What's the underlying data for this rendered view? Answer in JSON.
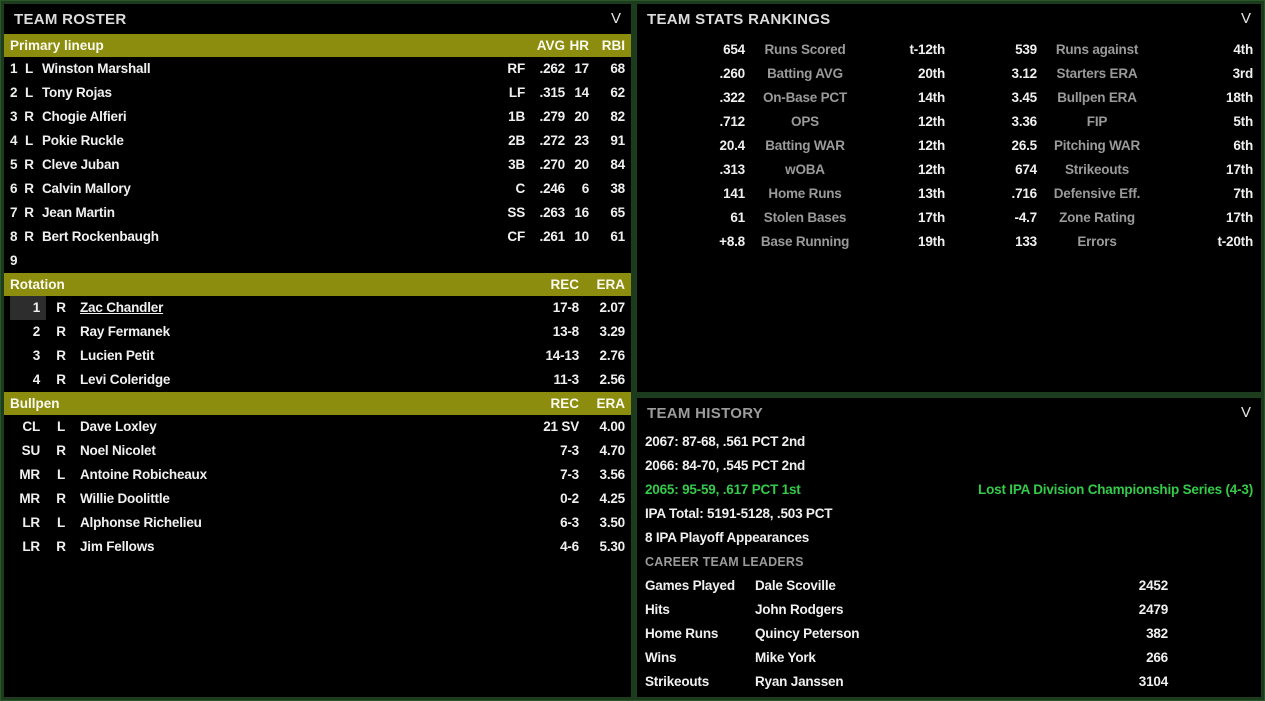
{
  "colors": {
    "accent_olive": "#8c8d0e",
    "accent_green": "#35cb4a",
    "frame_green": "#1d3c1d",
    "panel_bg": "#000000",
    "highlight_cell": "#2d2d2d"
  },
  "icons": {
    "collapse_chevron": "V"
  },
  "roster": {
    "title": "TEAM ROSTER",
    "lineup": {
      "label": "Primary lineup",
      "col_avg": "AVG",
      "col_hr": "HR",
      "col_rbi": "RBI",
      "rows": [
        {
          "num": "1",
          "hand": "L",
          "name": "Winston Marshall",
          "pos": "RF",
          "avg": ".262",
          "hr": "17",
          "rbi": "68"
        },
        {
          "num": "2",
          "hand": "L",
          "name": "Tony Rojas",
          "pos": "LF",
          "avg": ".315",
          "hr": "14",
          "rbi": "62"
        },
        {
          "num": "3",
          "hand": "R",
          "name": "Chogie Alfieri",
          "pos": "1B",
          "avg": ".279",
          "hr": "20",
          "rbi": "82"
        },
        {
          "num": "4",
          "hand": "L",
          "name": "Pokie Ruckle",
          "pos": "2B",
          "avg": ".272",
          "hr": "23",
          "rbi": "91"
        },
        {
          "num": "5",
          "hand": "R",
          "name": "Cleve Juban",
          "pos": "3B",
          "avg": ".270",
          "hr": "20",
          "rbi": "84"
        },
        {
          "num": "6",
          "hand": "R",
          "name": "Calvin Mallory",
          "pos": "C",
          "avg": ".246",
          "hr": "6",
          "rbi": "38"
        },
        {
          "num": "7",
          "hand": "R",
          "name": "Jean Martin",
          "pos": "SS",
          "avg": ".263",
          "hr": "16",
          "rbi": "65"
        },
        {
          "num": "8",
          "hand": "R",
          "name": "Bert Rockenbaugh",
          "pos": "CF",
          "avg": ".261",
          "hr": "10",
          "rbi": "61"
        },
        {
          "num": "9"
        }
      ]
    },
    "rotation": {
      "label": "Rotation",
      "col_rec": "REC",
      "col_era": "ERA",
      "rows": [
        {
          "num": "1",
          "hand": "R",
          "name": "Zac Chandler",
          "rec": "17-8",
          "era": "2.07"
        },
        {
          "num": "2",
          "hand": "R",
          "name": "Ray Fermanek",
          "rec": "13-8",
          "era": "3.29"
        },
        {
          "num": "3",
          "hand": "R",
          "name": "Lucien Petit",
          "rec": "14-13",
          "era": "2.76"
        },
        {
          "num": "4",
          "hand": "R",
          "name": "Levi Coleridge",
          "rec": "11-3",
          "era": "2.56"
        }
      ]
    },
    "bullpen": {
      "label": "Bullpen",
      "col_rec": "REC",
      "col_era": "ERA",
      "rows": [
        {
          "role": "CL",
          "hand": "L",
          "name": "Dave Loxley",
          "rec": "21 SV",
          "era": "4.00"
        },
        {
          "role": "SU",
          "hand": "R",
          "name": "Noel Nicolet",
          "rec": "7-3",
          "era": "4.70"
        },
        {
          "role": "MR",
          "hand": "L",
          "name": "Antoine Robicheaux",
          "rec": "7-3",
          "era": "3.56"
        },
        {
          "role": "MR",
          "hand": "R",
          "name": "Willie Doolittle",
          "rec": "0-2",
          "era": "4.25"
        },
        {
          "role": "LR",
          "hand": "L",
          "name": "Alphonse Richelieu",
          "rec": "6-3",
          "era": "3.50"
        },
        {
          "role": "LR",
          "hand": "R",
          "name": "Jim Fellows",
          "rec": "4-6",
          "era": "5.30"
        }
      ]
    }
  },
  "stats": {
    "title": "TEAM STATS RANKINGS",
    "rows": [
      {
        "lv": "654",
        "ll": "Runs Scored",
        "lr": "t-12th",
        "rv": "539",
        "rl": "Runs against",
        "rr": "4th"
      },
      {
        "lv": ".260",
        "ll": "Batting AVG",
        "lr": "20th",
        "rv": "3.12",
        "rl": "Starters ERA",
        "rr": "3rd"
      },
      {
        "lv": ".322",
        "ll": "On-Base PCT",
        "lr": "14th",
        "rv": "3.45",
        "rl": "Bullpen ERA",
        "rr": "18th"
      },
      {
        "lv": ".712",
        "ll": "OPS",
        "lr": "12th",
        "rv": "3.36",
        "rl": "FIP",
        "rr": "5th"
      },
      {
        "lv": "20.4",
        "ll": "Batting WAR",
        "lr": "12th",
        "rv": "26.5",
        "rl": "Pitching WAR",
        "rr": "6th"
      },
      {
        "lv": ".313",
        "ll": "wOBA",
        "lr": "12th",
        "rv": "674",
        "rl": "Strikeouts",
        "rr": "17th"
      },
      {
        "lv": "141",
        "ll": "Home Runs",
        "lr": "13th",
        "rv": ".716",
        "rl": "Defensive Eff.",
        "rr": "7th"
      },
      {
        "lv": "61",
        "ll": "Stolen Bases",
        "lr": "17th",
        "rv": "-4.7",
        "rl": "Zone Rating",
        "rr": "17th"
      },
      {
        "lv": "+8.8",
        "ll": "Base Running",
        "lr": "19th",
        "rv": "133",
        "rl": "Errors",
        "rr": "t-20th"
      }
    ]
  },
  "history": {
    "title": "TEAM HISTORY",
    "lines": [
      {
        "text": "2067: 87-68, .561 PCT 2nd"
      },
      {
        "text": "2066: 84-70, .545 PCT 2nd"
      },
      {
        "text": "2065: 95-59, .617 PCT 1st",
        "note": "Lost IPA Division Championship Series (4-3)"
      },
      {
        "text": "IPA Total: 5191-5128, .503 PCT"
      },
      {
        "text": "8 IPA Playoff Appearances"
      }
    ],
    "leaders_title": "CAREER TEAM LEADERS",
    "leaders": [
      {
        "stat": "Games Played",
        "player": "Dale Scoville",
        "value": "2452"
      },
      {
        "stat": "Hits",
        "player": "John Rodgers",
        "value": "2479"
      },
      {
        "stat": "Home Runs",
        "player": "Quincy Peterson",
        "value": "382"
      },
      {
        "stat": "Wins",
        "player": "Mike York",
        "value": "266"
      },
      {
        "stat": "Strikeouts",
        "player": "Ryan Janssen",
        "value": "3104"
      }
    ]
  }
}
